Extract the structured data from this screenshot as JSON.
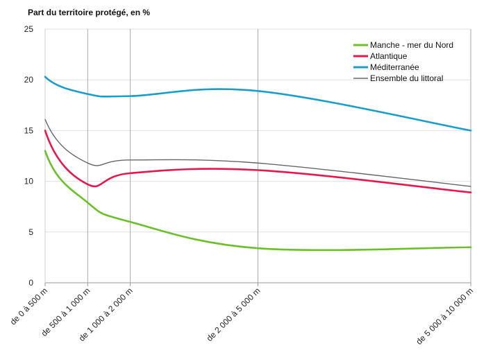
{
  "chart_data": {
    "type": "line",
    "ylabel": "Part du territoire protégé, en %",
    "xlabel": "",
    "ylim": [
      0,
      25
    ],
    "yticks": [
      "0",
      "5",
      "10",
      "15",
      "20",
      "25"
    ],
    "categories": [
      "de 0 à 500 m",
      "de 500 à 1 000 m",
      "de 1 000 à 2 000 m",
      "de 2 000 à 5 000 m",
      "de 5 000 à 10 000 m"
    ],
    "x_positions_m": [
      0,
      500,
      1000,
      2500,
      5000
    ],
    "grid": "vertical lines at x positions",
    "legend_position": "top-right",
    "series": [
      {
        "name": "Manche - mer du Nord",
        "color": "#6abf2a",
        "values": [
          13.0,
          7.9,
          6.0,
          3.4,
          3.5
        ]
      },
      {
        "name": "Atlantique",
        "color": "#e8174b",
        "values": [
          15.0,
          9.7,
          10.8,
          11.1,
          8.9
        ]
      },
      {
        "name": "Méditerranée",
        "color": "#1a9ec9",
        "values": [
          20.3,
          18.6,
          18.4,
          18.9,
          15.0
        ]
      },
      {
        "name": "Ensemble du littoral",
        "color": "#666666",
        "values": [
          16.1,
          11.8,
          12.1,
          11.8,
          9.5
        ]
      }
    ]
  }
}
